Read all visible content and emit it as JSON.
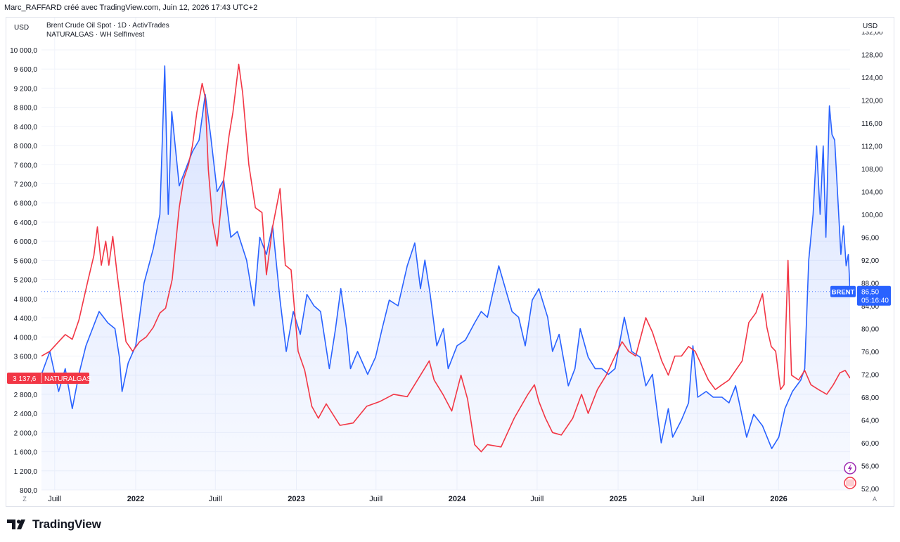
{
  "header": {
    "credit": "Marc_RAFFARD créé avec TradingView.com, Juin 12, 2026 17:43 UTC+2"
  },
  "footer": {
    "brand": "TradingView"
  },
  "chart_data": {
    "type": "line",
    "legend": [
      "Brent Crude Oil Spot · 1D · ActivTrades",
      "NATURALGAS · WH SelfInvest"
    ],
    "left_axis": {
      "currency": "USD",
      "range": [
        800,
        10000
      ],
      "ticks": [
        "800,0",
        "1 200,0",
        "1 600,0",
        "2 000,0",
        "2 400,0",
        "2 800,0",
        "3 200,0",
        "3 600,0",
        "4 000,0",
        "4 400,0",
        "4 800,0",
        "5 200,0",
        "5 600,0",
        "6 000,0",
        "6 400,0",
        "6 800,0",
        "7 200,0",
        "7 600,0",
        "8 000,0",
        "8 400,0",
        "8 800,0",
        "9 200,0",
        "9 600,0",
        "10 000,0"
      ]
    },
    "right_axis": {
      "currency": "USD",
      "range": [
        52,
        132
      ],
      "ticks": [
        "52,00",
        "56,00",
        "60,00",
        "64,00",
        "68,00",
        "72,00",
        "76,00",
        "80,00",
        "84,00",
        "88,00",
        "92,00",
        "96,00",
        "100,00",
        "104,00",
        "108,00",
        "112,00",
        "116,00",
        "120,00",
        "124,00",
        "128,00",
        "132,00"
      ]
    },
    "x_axis": {
      "range": [
        "2021-06-01",
        "2026-06-12"
      ],
      "ticks": [
        {
          "date": "2021-07-01",
          "label": "Juill"
        },
        {
          "date": "2022-01-01",
          "label": "2022"
        },
        {
          "date": "2022-07-01",
          "label": "Juill"
        },
        {
          "date": "2023-01-01",
          "label": "2023"
        },
        {
          "date": "2023-07-01",
          "label": "Juill"
        },
        {
          "date": "2024-01-01",
          "label": "2024"
        },
        {
          "date": "2024-07-01",
          "label": "Juill"
        },
        {
          "date": "2025-01-01",
          "label": "2025"
        },
        {
          "date": "2025-07-01",
          "label": "Juill"
        },
        {
          "date": "2026-01-01",
          "label": "2026"
        }
      ]
    },
    "grid": true,
    "series": [
      {
        "name": "BRENT",
        "axis": "right",
        "color": "#2962ff",
        "last_value": "86,50",
        "countdown": "05:16:40",
        "points": [
          [
            "2021-06-01",
            72
          ],
          [
            "2021-06-20",
            76
          ],
          [
            "2021-07-10",
            69
          ],
          [
            "2021-07-25",
            73
          ],
          [
            "2021-08-10",
            66
          ],
          [
            "2021-08-25",
            72
          ],
          [
            "2021-09-10",
            77
          ],
          [
            "2021-09-25",
            80
          ],
          [
            "2021-10-10",
            83
          ],
          [
            "2021-10-30",
            81
          ],
          [
            "2021-11-15",
            80
          ],
          [
            "2021-11-25",
            75
          ],
          [
            "2021-12-01",
            69
          ],
          [
            "2021-12-15",
            74
          ],
          [
            "2022-01-01",
            77
          ],
          [
            "2022-01-20",
            88
          ],
          [
            "2022-02-10",
            94
          ],
          [
            "2022-02-25",
            100
          ],
          [
            "2022-03-08",
            126
          ],
          [
            "2022-03-16",
            100
          ],
          [
            "2022-03-24",
            118
          ],
          [
            "2022-04-10",
            105
          ],
          [
            "2022-04-25",
            108
          ],
          [
            "2022-05-10",
            111
          ],
          [
            "2022-05-25",
            113
          ],
          [
            "2022-06-08",
            121
          ],
          [
            "2022-06-20",
            114
          ],
          [
            "2022-07-05",
            104
          ],
          [
            "2022-07-20",
            106
          ],
          [
            "2022-08-05",
            96
          ],
          [
            "2022-08-20",
            97
          ],
          [
            "2022-09-10",
            92
          ],
          [
            "2022-09-27",
            84
          ],
          [
            "2022-10-10",
            96
          ],
          [
            "2022-10-25",
            93
          ],
          [
            "2022-11-08",
            98
          ],
          [
            "2022-11-25",
            85
          ],
          [
            "2022-12-09",
            76
          ],
          [
            "2022-12-25",
            83
          ],
          [
            "2023-01-10",
            79
          ],
          [
            "2023-01-25",
            86
          ],
          [
            "2023-02-10",
            84
          ],
          [
            "2023-02-25",
            83
          ],
          [
            "2023-03-17",
            73
          ],
          [
            "2023-03-31",
            80
          ],
          [
            "2023-04-12",
            87
          ],
          [
            "2023-04-25",
            80
          ],
          [
            "2023-05-04",
            73
          ],
          [
            "2023-05-20",
            76
          ],
          [
            "2023-06-12",
            72
          ],
          [
            "2023-06-30",
            75
          ],
          [
            "2023-07-15",
            80
          ],
          [
            "2023-07-31",
            85
          ],
          [
            "2023-08-20",
            84
          ],
          [
            "2023-09-10",
            91
          ],
          [
            "2023-09-27",
            95
          ],
          [
            "2023-10-10",
            87
          ],
          [
            "2023-10-20",
            92
          ],
          [
            "2023-11-01",
            86
          ],
          [
            "2023-11-16",
            77
          ],
          [
            "2023-12-01",
            80
          ],
          [
            "2023-12-12",
            73
          ],
          [
            "2024-01-01",
            77
          ],
          [
            "2024-01-20",
            78
          ],
          [
            "2024-02-10",
            81
          ],
          [
            "2024-02-25",
            83
          ],
          [
            "2024-03-10",
            82
          ],
          [
            "2024-04-05",
            91
          ],
          [
            "2024-04-20",
            87
          ],
          [
            "2024-05-05",
            83
          ],
          [
            "2024-05-20",
            82
          ],
          [
            "2024-06-04",
            77
          ],
          [
            "2024-06-20",
            85
          ],
          [
            "2024-07-05",
            87
          ],
          [
            "2024-07-25",
            82
          ],
          [
            "2024-08-05",
            76
          ],
          [
            "2024-08-20",
            79
          ],
          [
            "2024-09-10",
            70
          ],
          [
            "2024-09-25",
            73
          ],
          [
            "2024-10-07",
            80
          ],
          [
            "2024-10-25",
            75
          ],
          [
            "2024-11-10",
            73
          ],
          [
            "2024-11-25",
            73
          ],
          [
            "2024-12-10",
            72
          ],
          [
            "2024-12-25",
            73
          ],
          [
            "2025-01-15",
            82
          ],
          [
            "2025-02-01",
            76
          ],
          [
            "2025-02-20",
            75
          ],
          [
            "2025-03-05",
            70
          ],
          [
            "2025-03-20",
            72
          ],
          [
            "2025-04-09",
            60
          ],
          [
            "2025-04-25",
            66
          ],
          [
            "2025-05-05",
            61
          ],
          [
            "2025-05-25",
            64
          ],
          [
            "2025-06-10",
            67
          ],
          [
            "2025-06-20",
            77
          ],
          [
            "2025-07-01",
            68
          ],
          [
            "2025-07-20",
            69
          ],
          [
            "2025-08-05",
            68
          ],
          [
            "2025-08-25",
            68
          ],
          [
            "2025-09-10",
            67
          ],
          [
            "2025-09-25",
            70
          ],
          [
            "2025-10-20",
            61
          ],
          [
            "2025-11-05",
            65
          ],
          [
            "2025-11-25",
            63
          ],
          [
            "2025-12-16",
            59
          ],
          [
            "2026-01-01",
            61
          ],
          [
            "2026-01-15",
            66
          ],
          [
            "2026-02-01",
            69
          ],
          [
            "2026-02-20",
            71
          ],
          [
            "2026-03-01",
            73
          ],
          [
            "2026-03-10",
            92
          ],
          [
            "2026-03-20",
            100
          ],
          [
            "2026-03-28",
            112
          ],
          [
            "2026-04-05",
            100
          ],
          [
            "2026-04-12",
            112
          ],
          [
            "2026-04-18",
            96
          ],
          [
            "2026-04-26",
            119
          ],
          [
            "2026-05-02",
            114
          ],
          [
            "2026-05-08",
            113
          ],
          [
            "2026-05-15",
            103
          ],
          [
            "2026-05-22",
            93
          ],
          [
            "2026-05-28",
            98
          ],
          [
            "2026-06-03",
            91
          ],
          [
            "2026-06-08",
            93
          ],
          [
            "2026-06-12",
            86.5
          ]
        ]
      },
      {
        "name": "NATURALGAS",
        "axis": "left",
        "color": "#f23645",
        "last_value": "3 137,6",
        "points": [
          [
            "2021-06-01",
            3600
          ],
          [
            "2021-06-20",
            3700
          ],
          [
            "2021-07-10",
            3900
          ],
          [
            "2021-07-25",
            4050
          ],
          [
            "2021-08-10",
            3950
          ],
          [
            "2021-08-25",
            4350
          ],
          [
            "2021-09-15",
            5200
          ],
          [
            "2021-09-28",
            5700
          ],
          [
            "2021-10-06",
            6300
          ],
          [
            "2021-10-15",
            5500
          ],
          [
            "2021-10-25",
            6000
          ],
          [
            "2021-11-01",
            5500
          ],
          [
            "2021-11-10",
            6100
          ],
          [
            "2021-11-20",
            5300
          ],
          [
            "2021-12-01",
            4500
          ],
          [
            "2021-12-10",
            3900
          ],
          [
            "2021-12-25",
            3700
          ],
          [
            "2022-01-10",
            3900
          ],
          [
            "2022-01-25",
            4000
          ],
          [
            "2022-02-10",
            4200
          ],
          [
            "2022-02-25",
            4500
          ],
          [
            "2022-03-10",
            4600
          ],
          [
            "2022-03-25",
            5200
          ],
          [
            "2022-04-10",
            6700
          ],
          [
            "2022-04-20",
            7300
          ],
          [
            "2022-05-01",
            7600
          ],
          [
            "2022-05-10",
            8000
          ],
          [
            "2022-05-20",
            8700
          ],
          [
            "2022-06-01",
            9300
          ],
          [
            "2022-06-08",
            9000
          ],
          [
            "2022-06-15",
            7500
          ],
          [
            "2022-06-25",
            6400
          ],
          [
            "2022-07-05",
            5900
          ],
          [
            "2022-07-20",
            7300
          ],
          [
            "2022-08-01",
            8200
          ],
          [
            "2022-08-10",
            8700
          ],
          [
            "2022-08-23",
            9700
          ],
          [
            "2022-09-01",
            9100
          ],
          [
            "2022-09-15",
            7600
          ],
          [
            "2022-09-30",
            6700
          ],
          [
            "2022-10-15",
            6600
          ],
          [
            "2022-10-25",
            5300
          ],
          [
            "2022-11-08",
            6300
          ],
          [
            "2022-11-25",
            7100
          ],
          [
            "2022-12-07",
            5500
          ],
          [
            "2022-12-20",
            5400
          ],
          [
            "2023-01-05",
            3700
          ],
          [
            "2023-01-20",
            3300
          ],
          [
            "2023-02-05",
            2550
          ],
          [
            "2023-02-20",
            2300
          ],
          [
            "2023-03-10",
            2600
          ],
          [
            "2023-04-10",
            2150
          ],
          [
            "2023-05-10",
            2200
          ],
          [
            "2023-06-10",
            2550
          ],
          [
            "2023-07-10",
            2650
          ],
          [
            "2023-08-10",
            2800
          ],
          [
            "2023-09-10",
            2750
          ],
          [
            "2023-10-10",
            3200
          ],
          [
            "2023-10-30",
            3500
          ],
          [
            "2023-11-10",
            3100
          ],
          [
            "2023-11-30",
            2800
          ],
          [
            "2023-12-20",
            2450
          ],
          [
            "2024-01-10",
            3200
          ],
          [
            "2024-01-25",
            2700
          ],
          [
            "2024-02-10",
            1750
          ],
          [
            "2024-02-25",
            1600
          ],
          [
            "2024-03-10",
            1750
          ],
          [
            "2024-04-10",
            1700
          ],
          [
            "2024-05-10",
            2300
          ],
          [
            "2024-06-10",
            2800
          ],
          [
            "2024-06-25",
            3000
          ],
          [
            "2024-07-05",
            2650
          ],
          [
            "2024-07-20",
            2300
          ],
          [
            "2024-08-05",
            2000
          ],
          [
            "2024-08-25",
            1950
          ],
          [
            "2024-09-20",
            2300
          ],
          [
            "2024-10-10",
            2800
          ],
          [
            "2024-10-25",
            2400
          ],
          [
            "2024-11-15",
            2900
          ],
          [
            "2024-12-05",
            3200
          ],
          [
            "2024-12-20",
            3500
          ],
          [
            "2025-01-10",
            3900
          ],
          [
            "2025-01-25",
            3700
          ],
          [
            "2025-02-10",
            3600
          ],
          [
            "2025-03-05",
            4400
          ],
          [
            "2025-03-20",
            4100
          ],
          [
            "2025-04-10",
            3500
          ],
          [
            "2025-04-25",
            3200
          ],
          [
            "2025-05-10",
            3600
          ],
          [
            "2025-05-25",
            3600
          ],
          [
            "2025-06-10",
            3800
          ],
          [
            "2025-06-25",
            3700
          ],
          [
            "2025-07-10",
            3400
          ],
          [
            "2025-07-25",
            3100
          ],
          [
            "2025-08-10",
            2900
          ],
          [
            "2025-08-25",
            3000
          ],
          [
            "2025-09-10",
            3100
          ],
          [
            "2025-10-10",
            3500
          ],
          [
            "2025-10-25",
            4300
          ],
          [
            "2025-11-10",
            4500
          ],
          [
            "2025-11-25",
            4900
          ],
          [
            "2025-12-05",
            4200
          ],
          [
            "2025-12-15",
            3800
          ],
          [
            "2025-12-25",
            3700
          ],
          [
            "2026-01-05",
            2900
          ],
          [
            "2026-01-13",
            3000
          ],
          [
            "2026-01-22",
            5600
          ],
          [
            "2026-01-30",
            3200
          ],
          [
            "2026-02-15",
            3100
          ],
          [
            "2026-03-01",
            3300
          ],
          [
            "2026-03-15",
            3000
          ],
          [
            "2026-04-01",
            2900
          ],
          [
            "2026-04-20",
            2800
          ],
          [
            "2026-05-05",
            3000
          ],
          [
            "2026-05-20",
            3250
          ],
          [
            "2026-06-01",
            3300
          ],
          [
            "2026-06-12",
            3137.6
          ]
        ]
      }
    ],
    "badges": [
      "Z",
      "A"
    ]
  }
}
